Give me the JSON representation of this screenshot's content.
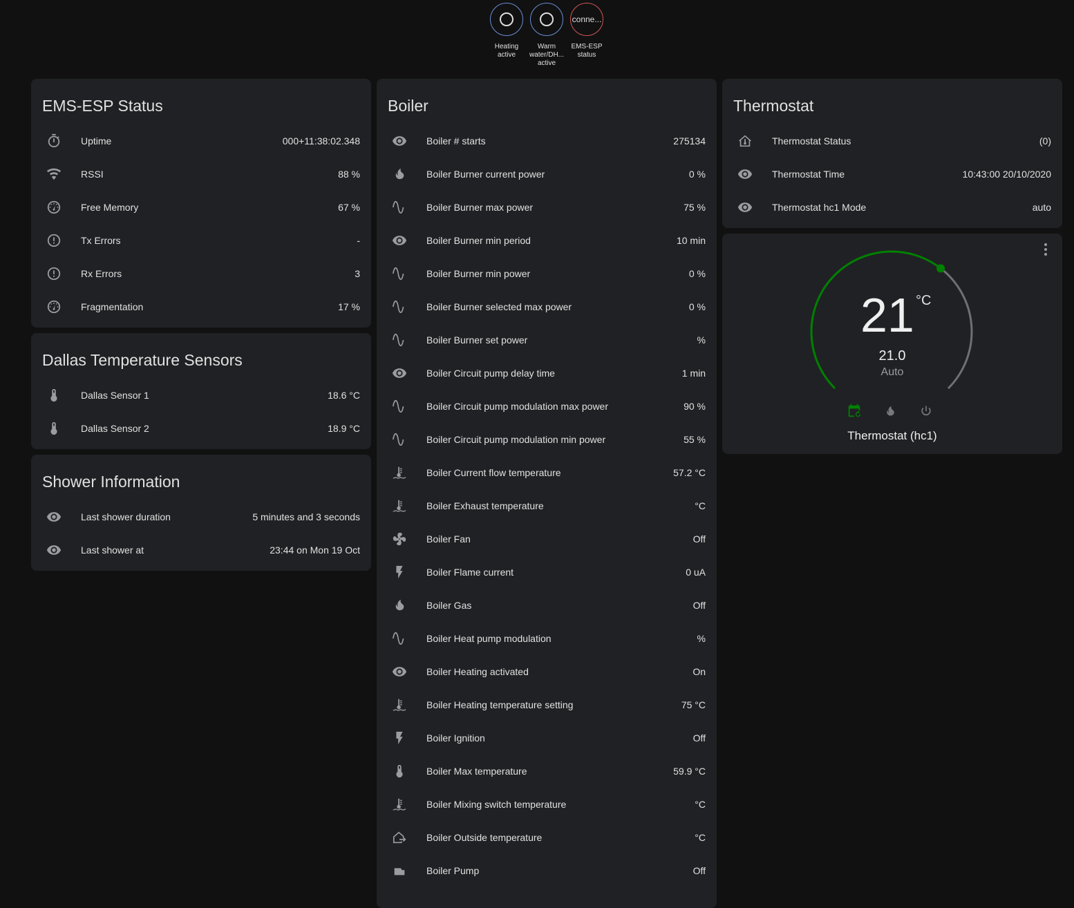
{
  "badges": [
    {
      "label": "Heating active",
      "state": "",
      "color": "#6b8fd6"
    },
    {
      "label": "Warm water/DH... active",
      "state": "",
      "color": "#6b8fd6"
    },
    {
      "label": "EMS-ESP status",
      "state": "conne...",
      "color": "#d25555"
    }
  ],
  "ems": {
    "title": "EMS-ESP Status",
    "rows": [
      {
        "icon": "timer-icon",
        "label": "Uptime",
        "value": "000+11:38:02.348"
      },
      {
        "icon": "wifi-icon",
        "label": "RSSI",
        "value": "88 %"
      },
      {
        "icon": "gauge-icon",
        "label": "Free Memory",
        "value": "67 %"
      },
      {
        "icon": "alert-circle-icon",
        "label": "Tx Errors",
        "value": "-"
      },
      {
        "icon": "alert-circle-icon",
        "label": "Rx Errors",
        "value": "3"
      },
      {
        "icon": "gauge-icon",
        "label": "Fragmentation",
        "value": "17 %"
      }
    ]
  },
  "dallas": {
    "title": "Dallas Temperature Sensors",
    "rows": [
      {
        "icon": "thermometer-icon",
        "label": "Dallas Sensor 1",
        "value": "18.6 °C"
      },
      {
        "icon": "thermometer-icon",
        "label": "Dallas Sensor 2",
        "value": "18.9 °C"
      }
    ]
  },
  "shower": {
    "title": "Shower Information",
    "rows": [
      {
        "icon": "eye-icon",
        "label": "Last shower duration",
        "value": "5 minutes and 3 seconds"
      },
      {
        "icon": "eye-icon",
        "label": "Last shower at",
        "value": "23:44 on Mon 19 Oct"
      }
    ]
  },
  "boiler": {
    "title": "Boiler",
    "rows": [
      {
        "icon": "eye-icon",
        "label": "Boiler # starts",
        "value": "275134"
      },
      {
        "icon": "fire-icon",
        "label": "Boiler Burner current power",
        "value": "0 %"
      },
      {
        "icon": "sine-wave-icon",
        "label": "Boiler Burner max power",
        "value": "75 %"
      },
      {
        "icon": "eye-icon",
        "label": "Boiler Burner min period",
        "value": "10 min"
      },
      {
        "icon": "sine-wave-icon",
        "label": "Boiler Burner min power",
        "value": "0 %"
      },
      {
        "icon": "sine-wave-icon",
        "label": "Boiler Burner selected max power",
        "value": "0 %"
      },
      {
        "icon": "sine-wave-icon",
        "label": "Boiler Burner set power",
        "value": "%"
      },
      {
        "icon": "eye-icon",
        "label": "Boiler Circuit pump delay time",
        "value": "1 min"
      },
      {
        "icon": "sine-wave-icon",
        "label": "Boiler Circuit pump modulation max power",
        "value": "90 %"
      },
      {
        "icon": "sine-wave-icon",
        "label": "Boiler Circuit pump modulation min power",
        "value": "55 %"
      },
      {
        "icon": "water-thermometer-icon",
        "label": "Boiler Current flow temperature",
        "value": "57.2 °C"
      },
      {
        "icon": "water-thermometer-icon",
        "label": "Boiler Exhaust temperature",
        "value": "°C"
      },
      {
        "icon": "fan-icon",
        "label": "Boiler Fan",
        "value": "Off"
      },
      {
        "icon": "flash-icon",
        "label": "Boiler Flame current",
        "value": "0 uA"
      },
      {
        "icon": "fire-icon",
        "label": "Boiler Gas",
        "value": "Off"
      },
      {
        "icon": "sine-wave-icon",
        "label": "Boiler Heat pump modulation",
        "value": "%"
      },
      {
        "icon": "eye-icon",
        "label": "Boiler Heating activated",
        "value": "On"
      },
      {
        "icon": "water-thermometer-icon",
        "label": "Boiler Heating temperature setting",
        "value": "75 °C"
      },
      {
        "icon": "flash-icon",
        "label": "Boiler Ignition",
        "value": "Off"
      },
      {
        "icon": "thermometer-icon",
        "label": "Boiler Max temperature",
        "value": "59.9 °C"
      },
      {
        "icon": "water-thermometer-icon",
        "label": "Boiler Mixing switch temperature",
        "value": "°C"
      },
      {
        "icon": "home-export-icon",
        "label": "Boiler Outside temperature",
        "value": "°C"
      },
      {
        "icon": "pump-icon",
        "label": "Boiler Pump",
        "value": "Off"
      }
    ]
  },
  "thermostat": {
    "title": "Thermostat",
    "rows": [
      {
        "icon": "home-thermometer-icon",
        "label": "Thermostat Status",
        "value": "(0)"
      },
      {
        "icon": "eye-icon",
        "label": "Thermostat Time",
        "value": "10:43:00 20/10/2020"
      },
      {
        "icon": "eye-icon",
        "label": "Thermostat hc1 Mode",
        "value": "auto"
      }
    ]
  },
  "climate": {
    "current": "21",
    "unit": "°C",
    "setpoint": "21.0",
    "mode": "Auto",
    "name": "Thermostat (hc1)",
    "gauge_fraction": 0.64,
    "active_color": "#008000",
    "modes": [
      "calendar-sync-icon",
      "fire-icon",
      "power-icon"
    ],
    "active_mode": "calendar-sync-icon"
  }
}
